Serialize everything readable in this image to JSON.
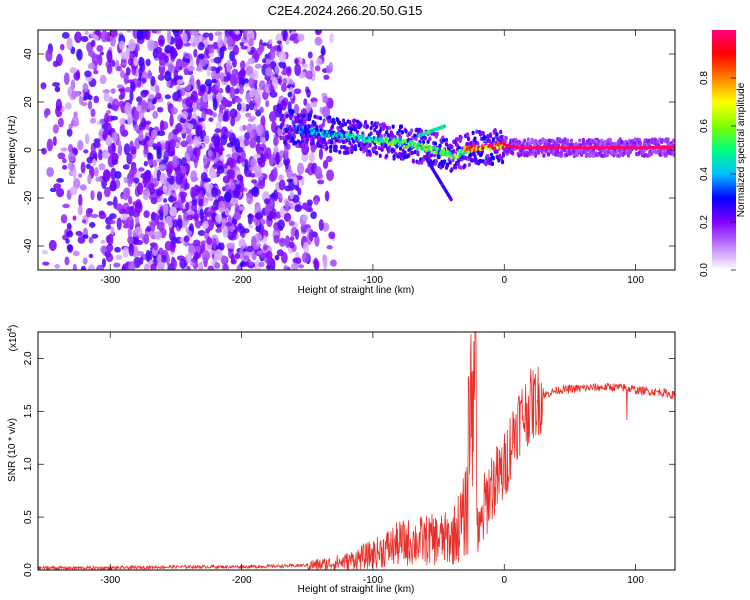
{
  "title": "C2E4.2024.266.20.50.G15",
  "chart_data": [
    {
      "type": "heatmap",
      "xlabel": "Height of straight line (km)",
      "ylabel": "Frequency (Hz)",
      "xlim": [
        -355,
        130
      ],
      "ylim": [
        -50,
        50
      ],
      "xticks": [
        -300,
        -200,
        -100,
        0,
        100
      ],
      "yticks": [
        -40,
        -20,
        0,
        20,
        40
      ],
      "colorbar": {
        "label": "Normalized spectral amplitude",
        "range": [
          0,
          1
        ],
        "ticks": [
          "0.0",
          "0.2",
          "0.4",
          "0.6",
          "0.8"
        ],
        "colors": [
          "#ffffff",
          "#c080ff",
          "#8000ff",
          "#0000ff",
          "#00c0ff",
          "#00ff80",
          "#80ff00",
          "#ffff00",
          "#ff8000",
          "#ff0000",
          "#ff0080"
        ]
      },
      "ridge": {
        "x": [
          -170,
          -140,
          -110,
          -80,
          -60,
          -45,
          -38,
          -30,
          -20,
          -10,
          0,
          10,
          40,
          80,
          130
        ],
        "y": [
          10,
          7,
          5,
          3,
          1,
          -1,
          -3,
          0,
          1,
          1,
          2,
          1,
          1,
          1,
          1
        ],
        "value": [
          0.3,
          0.4,
          0.5,
          0.55,
          0.6,
          0.5,
          0.6,
          0.7,
          0.9,
          0.95,
          0.95,
          0.98,
          0.98,
          0.98,
          0.98
        ]
      },
      "scatter_region": {
        "x": [
          -355,
          -140
        ],
        "y": [
          -50,
          50
        ],
        "value_range": [
          0.0,
          0.2
        ]
      }
    },
    {
      "type": "line",
      "xlabel": "Height of straight line (km)",
      "ylabel": "SNR (10 * v/v)",
      "y_multiplier": "(x10",
      "y_multiplier_exp": "4",
      "xlim": [
        -355,
        130
      ],
      "ylim": [
        0,
        2.25
      ],
      "xticks": [
        -300,
        -200,
        -100,
        0,
        100
      ],
      "yticks": [
        "0.0",
        "0.5",
        "1.0",
        "1.5",
        "2.0"
      ],
      "series": [
        {
          "color": "#e8302a",
          "x": [
            -355,
            -300,
            -250,
            -200,
            -160,
            -140,
            -120,
            -100,
            -80,
            -60,
            -40,
            -30,
            -25,
            -22,
            -20,
            -15,
            -10,
            -5,
            0,
            5,
            10,
            20,
            30,
            40,
            60,
            80,
            95,
            100,
            120,
            130
          ],
          "y": [
            0.02,
            0.02,
            0.03,
            0.03,
            0.04,
            0.05,
            0.08,
            0.15,
            0.25,
            0.28,
            0.3,
            0.5,
            1.0,
            2.2,
            0.2,
            0.6,
            0.8,
            0.85,
            0.95,
            1.2,
            1.4,
            1.55,
            1.65,
            1.7,
            1.72,
            1.73,
            1.72,
            1.7,
            1.68,
            1.65
          ]
        }
      ]
    }
  ]
}
